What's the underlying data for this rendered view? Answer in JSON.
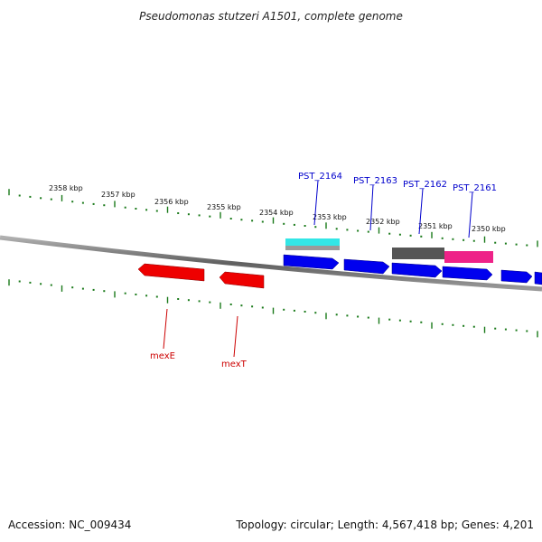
{
  "title": "Pseudomonas stutzeri A1501, complete genome",
  "footer": {
    "accession": "Accession: NC_009434",
    "summary": "Topology: circular; Length: 4,567,418 bp; Genes: 4,201"
  },
  "colors": {
    "backbone": "#707070",
    "tick": "#1a7a1a",
    "gene_forward": "#0000ee",
    "gene_reverse": "#ee0000",
    "label_forward": "#0000cc",
    "label_reverse": "#cc0000",
    "feature_cyan": "#33e6e6",
    "feature_gray": "#9a9a9a",
    "feature_darkgray": "#555555",
    "feature_pink": "#ee2288"
  },
  "scale": {
    "labels": [
      "2358 kbp",
      "2357 kbp",
      "2356 kbp",
      "2355 kbp",
      "2354 kbp",
      "2353 kbp",
      "2352 kbp",
      "2351 kbp",
      "2350 kbp"
    ]
  },
  "genes": {
    "forward": [
      {
        "name": "PST_2164"
      },
      {
        "name": "PST_2163"
      },
      {
        "name": "PST_2162"
      },
      {
        "name": "PST_2161"
      }
    ],
    "reverse": [
      {
        "name": "mexE"
      },
      {
        "name": "mexT"
      }
    ]
  }
}
